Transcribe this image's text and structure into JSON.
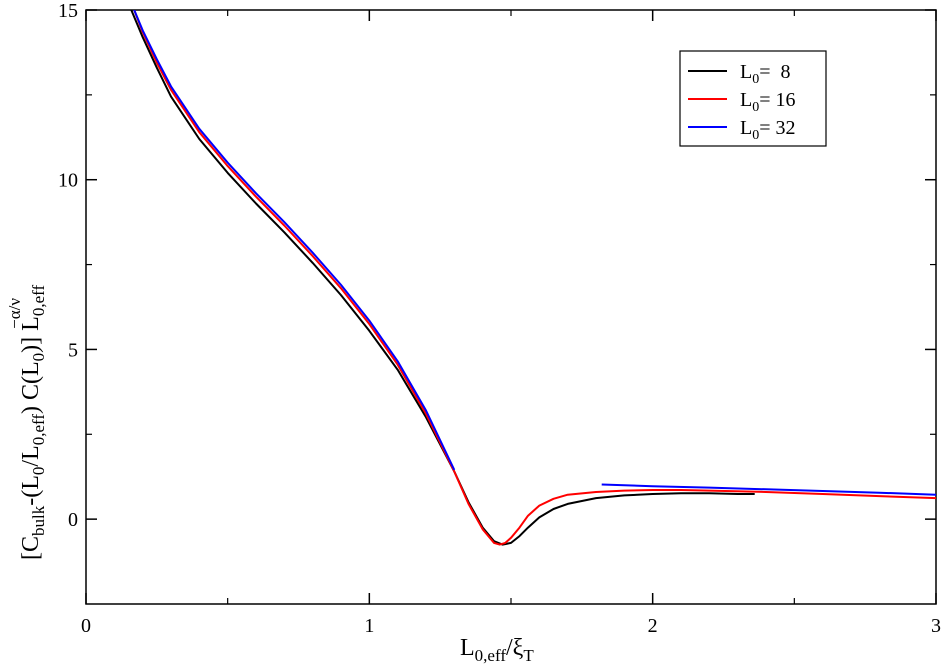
{
  "chart_data": {
    "type": "line",
    "xlabel": {
      "main": "L",
      "sub": "0,eff",
      "sep": "/",
      "main2": "ξ",
      "sub2": "T"
    },
    "ylabel": {
      "p1": "[C",
      "s1": "bulk",
      "p2": "-(L",
      "s2": "0",
      "p3": "/L",
      "s3": "0,eff",
      "p4": ") C(L",
      "s4": "0",
      "p5": ")] L",
      "s5": "0,eff",
      "sup": "−α/ν"
    },
    "xlim": [
      0,
      3
    ],
    "ylim": [
      -2.5,
      15
    ],
    "xticks": [
      {
        "value": 0,
        "label": "0"
      },
      {
        "value": 1,
        "label": "1"
      },
      {
        "value": 2,
        "label": "2"
      },
      {
        "value": 3,
        "label": "3"
      }
    ],
    "yticks": [
      {
        "value": 0,
        "label": "0"
      },
      {
        "value": 5,
        "label": "5"
      },
      {
        "value": 10,
        "label": "10"
      },
      {
        "value": 15,
        "label": "15"
      }
    ],
    "legend_position": "top-right",
    "series": [
      {
        "legend_main": "L",
        "legend_sub": "0",
        "legend_rest": "=  8",
        "color": "#000000",
        "points": [
          [
            0.16,
            15.0
          ],
          [
            0.2,
            14.2
          ],
          [
            0.25,
            13.3
          ],
          [
            0.3,
            12.45
          ],
          [
            0.4,
            11.2
          ],
          [
            0.5,
            10.2
          ],
          [
            0.6,
            9.3
          ],
          [
            0.7,
            8.45
          ],
          [
            0.8,
            7.55
          ],
          [
            0.9,
            6.6
          ],
          [
            1.0,
            5.55
          ],
          [
            1.1,
            4.4
          ],
          [
            1.2,
            3.0
          ],
          [
            1.3,
            1.4
          ],
          [
            1.35,
            0.5
          ],
          [
            1.4,
            -0.25
          ],
          [
            1.44,
            -0.65
          ],
          [
            1.47,
            -0.75
          ],
          [
            1.5,
            -0.7
          ],
          [
            1.53,
            -0.5
          ],
          [
            1.56,
            -0.25
          ],
          [
            1.6,
            0.05
          ],
          [
            1.65,
            0.3
          ],
          [
            1.7,
            0.45
          ],
          [
            1.8,
            0.62
          ],
          [
            1.9,
            0.7
          ],
          [
            2.0,
            0.74
          ],
          [
            2.1,
            0.76
          ],
          [
            2.2,
            0.76
          ],
          [
            2.3,
            0.74
          ],
          [
            2.36,
            0.74
          ]
        ]
      },
      {
        "legend_main": "L",
        "legend_sub": "0",
        "legend_rest": "= 16",
        "color": "#ff0000",
        "points": [
          [
            0.17,
            15.0
          ],
          [
            0.2,
            14.35
          ],
          [
            0.25,
            13.45
          ],
          [
            0.3,
            12.65
          ],
          [
            0.4,
            11.4
          ],
          [
            0.5,
            10.4
          ],
          [
            0.6,
            9.5
          ],
          [
            0.7,
            8.65
          ],
          [
            0.8,
            7.75
          ],
          [
            0.9,
            6.8
          ],
          [
            1.0,
            5.75
          ],
          [
            1.1,
            4.55
          ],
          [
            1.2,
            3.1
          ],
          [
            1.3,
            1.4
          ],
          [
            1.35,
            0.45
          ],
          [
            1.4,
            -0.3
          ],
          [
            1.44,
            -0.7
          ],
          [
            1.46,
            -0.75
          ],
          [
            1.48,
            -0.7
          ],
          [
            1.5,
            -0.55
          ],
          [
            1.53,
            -0.25
          ],
          [
            1.56,
            0.1
          ],
          [
            1.6,
            0.4
          ],
          [
            1.65,
            0.6
          ],
          [
            1.7,
            0.72
          ],
          [
            1.8,
            0.8
          ],
          [
            1.9,
            0.84
          ],
          [
            2.0,
            0.86
          ],
          [
            2.1,
            0.86
          ],
          [
            2.2,
            0.84
          ],
          [
            2.4,
            0.8
          ],
          [
            2.6,
            0.74
          ],
          [
            2.8,
            0.68
          ],
          [
            3.0,
            0.62
          ]
        ]
      },
      {
        "legend_main": "L",
        "legend_sub": "0",
        "legend_rest": "= 32",
        "color": "#0000ff",
        "points_a": [
          [
            0.17,
            15.0
          ],
          [
            0.2,
            14.4
          ],
          [
            0.25,
            13.55
          ],
          [
            0.3,
            12.75
          ],
          [
            0.4,
            11.5
          ],
          [
            0.5,
            10.5
          ],
          [
            0.6,
            9.6
          ],
          [
            0.7,
            8.75
          ],
          [
            0.8,
            7.85
          ],
          [
            0.9,
            6.9
          ],
          [
            1.0,
            5.85
          ],
          [
            1.1,
            4.65
          ],
          [
            1.2,
            3.2
          ],
          [
            1.3,
            1.45
          ]
        ],
        "points_b": [
          [
            1.82,
            1.02
          ],
          [
            2.0,
            0.97
          ],
          [
            2.2,
            0.93
          ],
          [
            2.4,
            0.88
          ],
          [
            2.6,
            0.83
          ],
          [
            2.8,
            0.78
          ],
          [
            3.0,
            0.72
          ]
        ]
      }
    ]
  }
}
